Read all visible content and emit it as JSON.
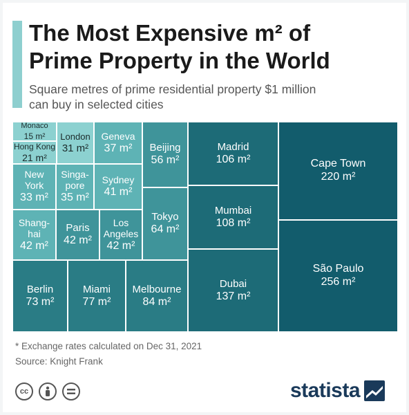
{
  "header": {
    "title_line1": "The Most Expensive m² of",
    "title_line2": "Prime Property in the World",
    "subtitle_line1": "Square metres of prime residential property $1 million",
    "subtitle_line2": "can buy in selected cities"
  },
  "chart_data": {
    "type": "treemap",
    "unit": "m²",
    "items": [
      {
        "city": "Monaco",
        "value": 15
      },
      {
        "city": "Hong Kong",
        "value": 21
      },
      {
        "city": "London",
        "value": 31
      },
      {
        "city": "Geneva",
        "value": 37
      },
      {
        "city": "New York",
        "value": 33
      },
      {
        "city": "Singapore",
        "value": 35
      },
      {
        "city": "Sydney",
        "value": 41
      },
      {
        "city": "Shanghai",
        "value": 42
      },
      {
        "city": "Paris",
        "value": 42
      },
      {
        "city": "Los Angeles",
        "value": 42
      },
      {
        "city": "Beijing",
        "value": 56
      },
      {
        "city": "Tokyo",
        "value": 64
      },
      {
        "city": "Berlin",
        "value": 73
      },
      {
        "city": "Miami",
        "value": 77
      },
      {
        "city": "Melbourne",
        "value": 84
      },
      {
        "city": "Madrid",
        "value": 106
      },
      {
        "city": "Mumbai",
        "value": 108
      },
      {
        "city": "Dubai",
        "value": 137
      },
      {
        "city": "Cape Town",
        "value": 220
      },
      {
        "city": "São Paulo",
        "value": 256
      }
    ],
    "display_labels": {
      "Monaco": [
        "Monaco"
      ],
      "Hong Kong": [
        "Hong Kong"
      ],
      "London": [
        "London"
      ],
      "Geneva": [
        "Geneva"
      ],
      "New York": [
        "New",
        "York"
      ],
      "Singapore": [
        "Singa-",
        "pore"
      ],
      "Sydney": [
        "Sydney"
      ],
      "Shanghai": [
        "Shang-",
        "hai"
      ],
      "Paris": [
        "Paris"
      ],
      "Los Angeles": [
        "Los",
        "Angeles"
      ],
      "Beijing": [
        "Beijing"
      ],
      "Tokyo": [
        "Tokyo"
      ],
      "Berlin": [
        "Berlin"
      ],
      "Miami": [
        "Miami"
      ],
      "Melbourne": [
        "Melbourne"
      ],
      "Madrid": [
        "Madrid"
      ],
      "Mumbai": [
        "Mumbai"
      ],
      "Dubai": [
        "Dubai"
      ],
      "Cape Town": [
        "Cape Town"
      ],
      "São Paulo": [
        "São Paulo"
      ]
    },
    "colors": {
      "lightest": "#8cd1d0",
      "light": "#5eb3b5",
      "mid": "#3f949a",
      "dark": "#2a7c85",
      "darker": "#1d6b77",
      "darkest": "#125c6c"
    }
  },
  "footer": {
    "note": "* Exchange rates calculated on Dec 31, 2021",
    "source": "Source: Knight Frank",
    "license_icons": [
      "cc-icon",
      "by-icon",
      "equals-icon"
    ],
    "logo": "statista"
  }
}
